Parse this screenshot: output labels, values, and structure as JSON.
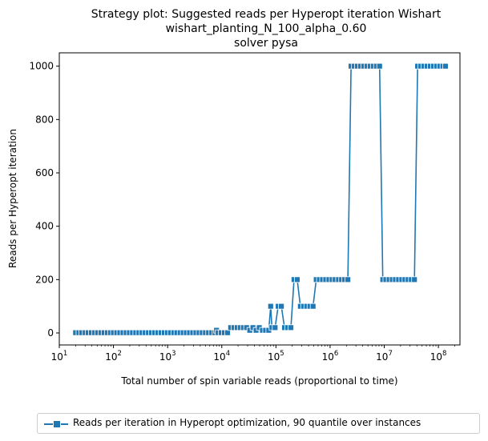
{
  "chart_data": {
    "type": "line",
    "title_lines": [
      "Strategy plot: Suggested reads per Hyperopt iteration Wishart",
      "wishart_planting_N_100_alpha_0.60",
      "solver pysa"
    ],
    "xlabel": "Total number of spin variable reads (proportional to time)",
    "ylabel": "Reads per Hyperopt iteration",
    "xscale": "log",
    "xlim": [
      10,
      250000000
    ],
    "ylim": [
      -45,
      1050
    ],
    "x_ticks": [
      {
        "base": "10",
        "exp": "1"
      },
      {
        "base": "10",
        "exp": "2"
      },
      {
        "base": "10",
        "exp": "3"
      },
      {
        "base": "10",
        "exp": "4"
      },
      {
        "base": "10",
        "exp": "5"
      },
      {
        "base": "10",
        "exp": "6"
      },
      {
        "base": "10",
        "exp": "7"
      },
      {
        "base": "10",
        "exp": "8"
      }
    ],
    "x_tick_values": [
      10,
      100,
      1000,
      10000,
      100000,
      1000000,
      10000000,
      100000000
    ],
    "y_ticks": [
      "0",
      "200",
      "400",
      "600",
      "800",
      "1000"
    ],
    "y_tick_values": [
      0,
      200,
      400,
      600,
      800,
      1000
    ],
    "grid": false,
    "legend_position": "bottom-center",
    "series": [
      {
        "name": "Reads per iteration in Hyperopt optimization, 90 quantile over instances",
        "color": "#1f77b4",
        "marker": "square",
        "x": [
          20,
          23,
          26,
          30,
          34,
          39,
          45,
          51,
          59,
          67,
          77,
          88,
          100,
          115,
          131,
          150,
          172,
          197,
          225,
          258,
          295,
          337,
          386,
          442,
          505,
          578,
          661,
          756,
          865,
          990,
          1130,
          1300,
          1480,
          1700,
          1940,
          2220,
          2540,
          2910,
          3330,
          3810,
          4360,
          4990,
          5700,
          6530,
          7470,
          8000,
          8550,
          9780,
          11200,
          12800,
          14600,
          16800,
          19200,
          21900,
          25100,
          28700,
          32900,
          37600,
          43000,
          49200,
          56300,
          64400,
          73700,
          80000,
          84300,
          96500,
          110000,
          126000,
          144000,
          165000,
          189000,
          216000,
          247000,
          283000,
          324000,
          371000,
          424000,
          485000,
          555000,
          635000,
          726000,
          831000,
          951000,
          1090000,
          1240000,
          1430000,
          1630000,
          1860000,
          2130000,
          2440000,
          2800000,
          3200000,
          3660000,
          4190000,
          4790000,
          5480000,
          6270000,
          7180000,
          8210000,
          9400000,
          10700000,
          12300000,
          14100000,
          16100000,
          18400000,
          21100000,
          24100000,
          27600000,
          31600000,
          36100000,
          41300000,
          47300000,
          54100000,
          61900000,
          70900000,
          81100000,
          92800000,
          106000000,
          121000000,
          135000000
        ],
        "y": [
          1,
          1,
          1,
          1,
          1,
          1,
          1,
          1,
          1,
          1,
          1,
          1,
          1,
          1,
          1,
          1,
          1,
          1,
          1,
          1,
          1,
          1,
          1,
          1,
          1,
          1,
          1,
          1,
          1,
          1,
          1,
          1,
          1,
          1,
          1,
          1,
          1,
          1,
          1,
          1,
          1,
          1,
          1,
          1,
          1,
          10,
          1,
          1,
          1,
          1,
          20,
          20,
          20,
          20,
          20,
          20,
          10,
          20,
          10,
          20,
          10,
          10,
          10,
          100,
          20,
          20,
          100,
          100,
          20,
          20,
          20,
          200,
          200,
          100,
          100,
          100,
          100,
          100,
          200,
          200,
          200,
          200,
          200,
          200,
          200,
          200,
          200,
          200,
          200,
          1000,
          1000,
          1000,
          1000,
          1000,
          1000,
          1000,
          1000,
          1000,
          1000,
          200,
          200,
          200,
          200,
          200,
          200,
          200,
          200,
          200,
          200,
          200,
          1000,
          1000,
          1000,
          1000,
          1000,
          1000,
          1000,
          1000,
          1000,
          1000
        ]
      }
    ]
  }
}
